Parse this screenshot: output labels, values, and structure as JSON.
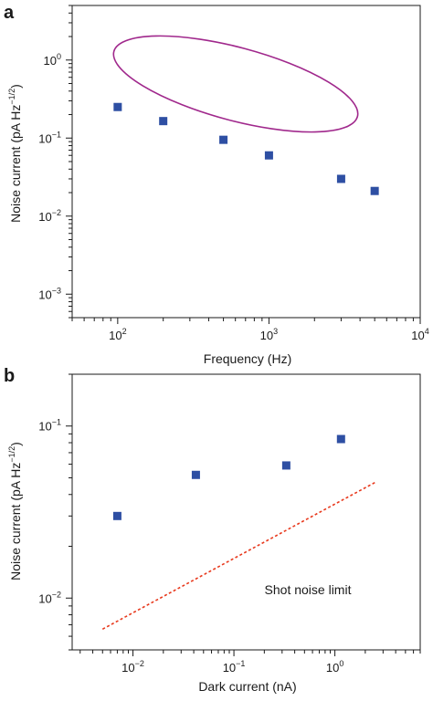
{
  "chart_data": [
    {
      "type": "scatter",
      "panel": "a",
      "xlabel": "Frequency (Hz)",
      "ylabel": "Noise current (pA Hz",
      "ylabel_exp": "−1/2",
      "ylabel_close": ")",
      "x_scale": "log",
      "y_scale": "log",
      "xlim": [
        50,
        10000
      ],
      "ylim": [
        0.0005,
        5
      ],
      "x_ticks": [
        {
          "value": 100,
          "base": "10",
          "exp": "2"
        },
        {
          "value": 1000,
          "base": "10",
          "exp": "3"
        },
        {
          "value": 10000,
          "base": "10",
          "exp": "4"
        }
      ],
      "y_ticks": [
        {
          "value": 1,
          "base": "10",
          "exp": "0"
        },
        {
          "value": 0.1,
          "base": "10",
          "exp": "−1"
        },
        {
          "value": 0.01,
          "base": "10",
          "exp": "−2"
        },
        {
          "value": 0.001,
          "base": "10",
          "exp": "−3"
        }
      ],
      "points": [
        {
          "x": 100,
          "y": 0.25
        },
        {
          "x": 200,
          "y": 0.165
        },
        {
          "x": 500,
          "y": 0.095
        },
        {
          "x": 1000,
          "y": 0.06
        },
        {
          "x": 3000,
          "y": 0.03
        },
        {
          "x": 5000,
          "y": 0.021
        }
      ],
      "marker_color": "#2e4fa3",
      "highlight_ellipse_color": "#a0288c",
      "grid": false
    },
    {
      "type": "scatter",
      "panel": "b",
      "xlabel": "Dark current (nA)",
      "ylabel": "Noise current (pA Hz",
      "ylabel_exp": "−1/2",
      "ylabel_close": ")",
      "x_scale": "log",
      "y_scale": "log",
      "xlim": [
        0.0025,
        7
      ],
      "ylim": [
        0.005,
        0.2
      ],
      "x_ticks": [
        {
          "value": 0.01,
          "base": "10",
          "exp": "−2"
        },
        {
          "value": 0.1,
          "base": "10",
          "exp": "−1"
        },
        {
          "value": 1,
          "base": "10",
          "exp": "0"
        }
      ],
      "y_ticks": [
        {
          "value": 0.1,
          "base": "10",
          "exp": "−1"
        },
        {
          "value": 0.01,
          "base": "10",
          "exp": "−2"
        }
      ],
      "points": [
        {
          "x": 0.007,
          "y": 0.03
        },
        {
          "x": 0.042,
          "y": 0.052
        },
        {
          "x": 0.33,
          "y": 0.059
        },
        {
          "x": 1.15,
          "y": 0.084
        }
      ],
      "shot_noise_line": {
        "x": [
          0.005,
          2.5
        ],
        "y": [
          0.0066,
          0.047
        ]
      },
      "annotation": "Shot noise limit",
      "marker_color": "#2e4fa3",
      "line_color": "#e8391d",
      "grid": false
    }
  ]
}
